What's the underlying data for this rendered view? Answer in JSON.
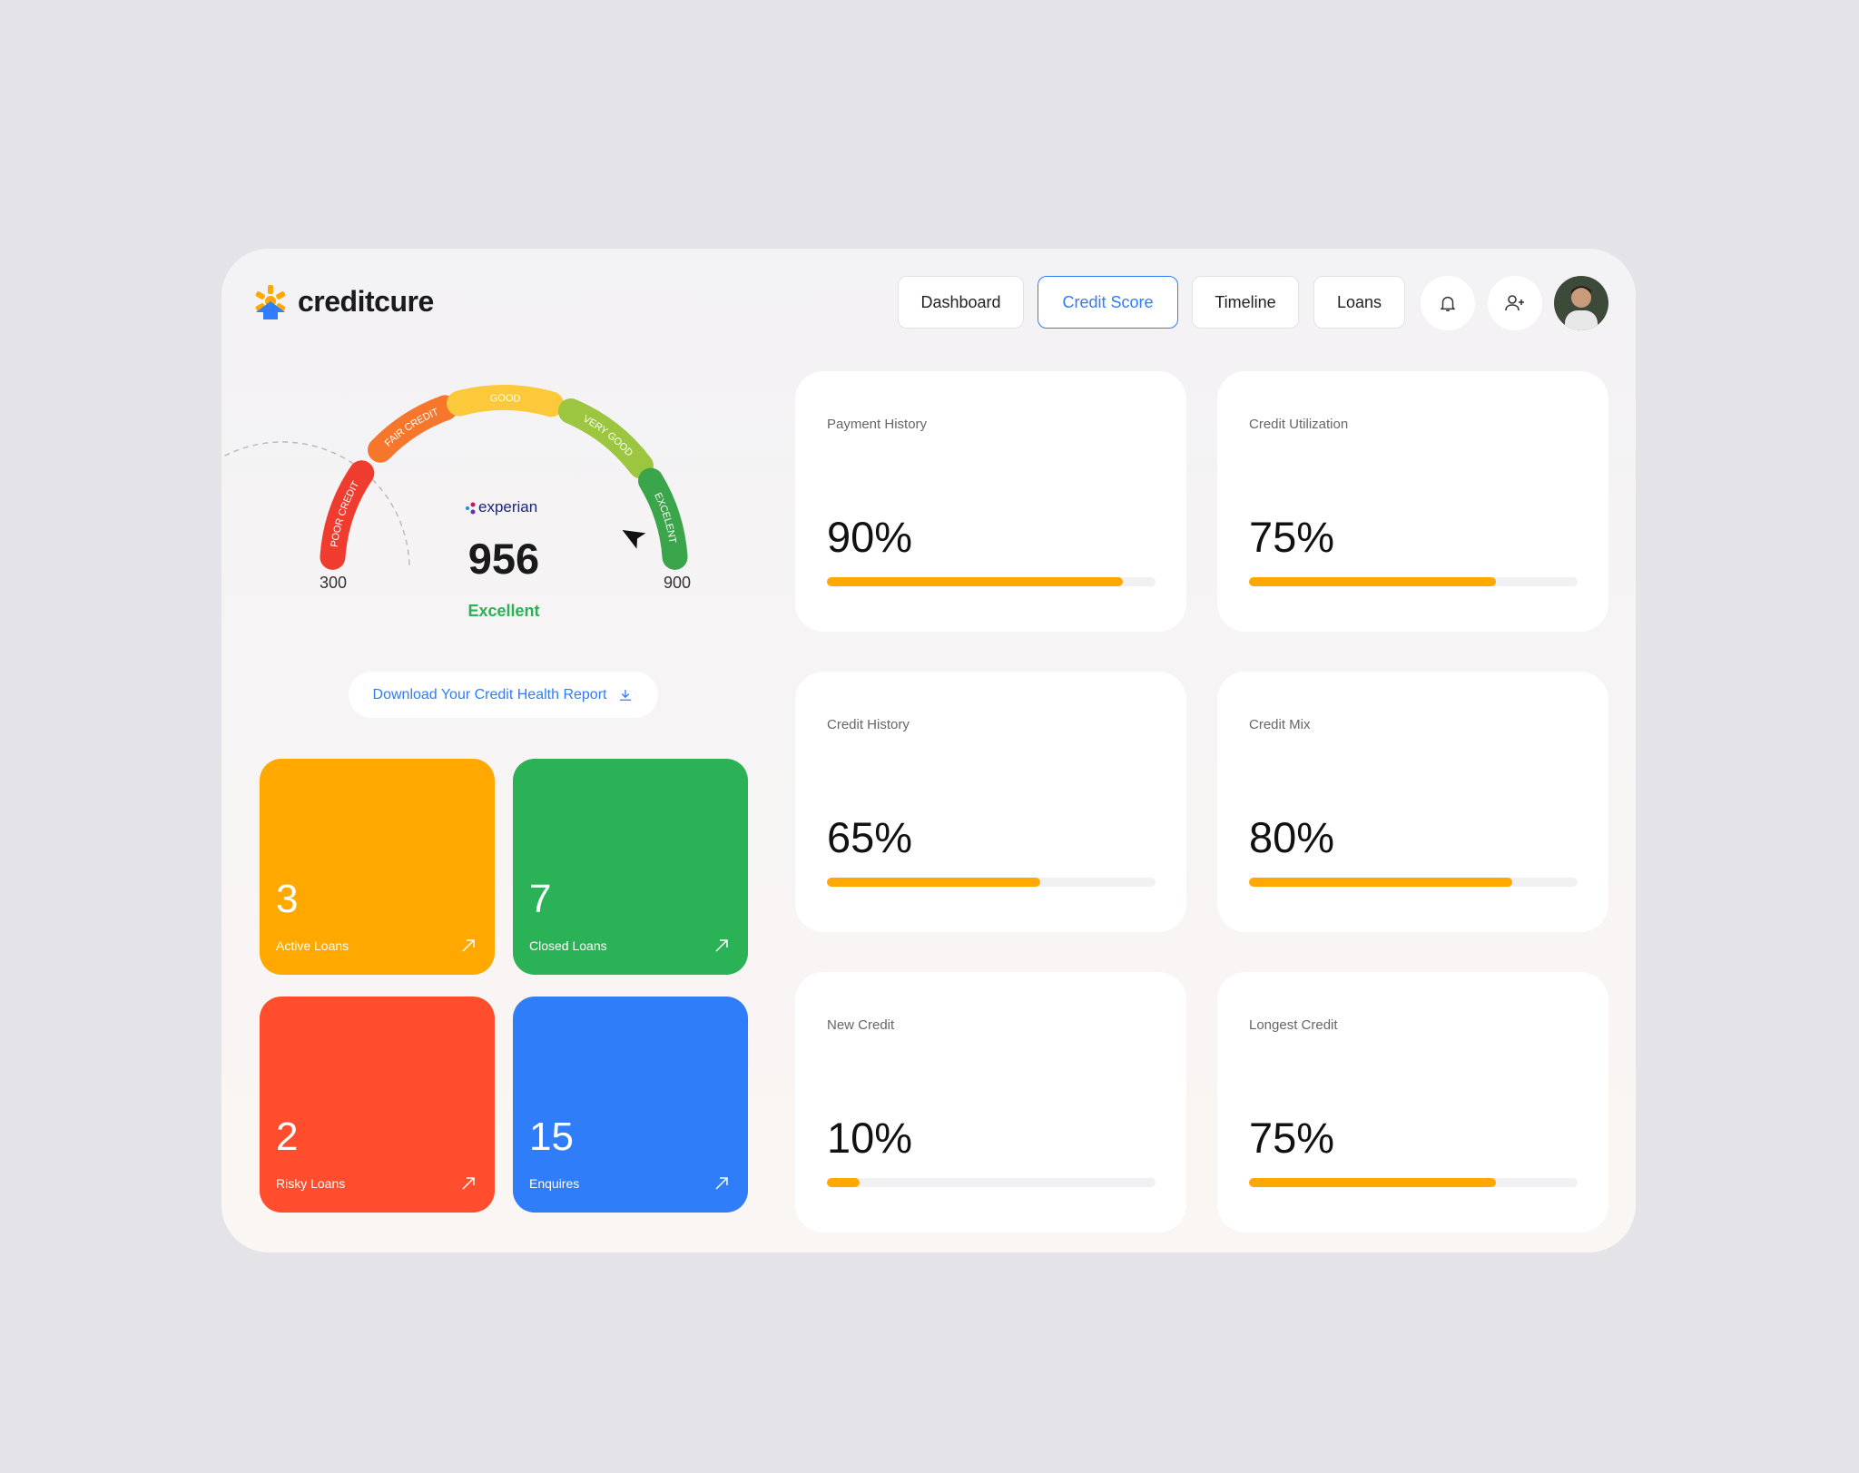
{
  "header": {
    "logo": "creditcure",
    "nav": [
      {
        "label": "Dashboard",
        "active": false
      },
      {
        "label": "Credit Score",
        "active": true
      },
      {
        "label": "Timeline",
        "active": false
      },
      {
        "label": "Loans",
        "active": false
      }
    ]
  },
  "gauge": {
    "bands": [
      {
        "label": "POOR CREDIT",
        "color": "#f03c2e"
      },
      {
        "label": "FAIR CREDIT",
        "color": "#f6762b"
      },
      {
        "label": "GOOD",
        "color": "#fbc93a"
      },
      {
        "label": "VERY GOOD",
        "color": "#9cc63f"
      },
      {
        "label": "EXCELENT",
        "color": "#3aa54a"
      }
    ],
    "min": 300,
    "max": 900,
    "provider": "experian",
    "score": 956,
    "rating": "Excellent"
  },
  "download": "Download Your Credit Health Report",
  "tiles": [
    {
      "value": 3,
      "label": "Active Loans",
      "color": "#ffa800"
    },
    {
      "value": 7,
      "label": "Closed Loans",
      "color": "#2bb156"
    },
    {
      "value": 2,
      "label": "Risky Loans",
      "color": "#ff4d2e"
    },
    {
      "value": 15,
      "label": "Enquires",
      "color": "#2f7df9"
    }
  ],
  "metrics": [
    {
      "label": "Payment History",
      "value": 90,
      "value_label": "90%"
    },
    {
      "label": "Credit Utilization",
      "value": 75,
      "value_label": "75%"
    },
    {
      "label": "Credit History",
      "value": 65,
      "value_label": "65%"
    },
    {
      "label": "Credit Mix",
      "value": 80,
      "value_label": "80%"
    },
    {
      "label": "New Credit",
      "value": 10,
      "value_label": "10%"
    },
    {
      "label": "Longest Credit",
      "value": 75,
      "value_label": "75%"
    }
  ],
  "bar_color": "#ffa800"
}
